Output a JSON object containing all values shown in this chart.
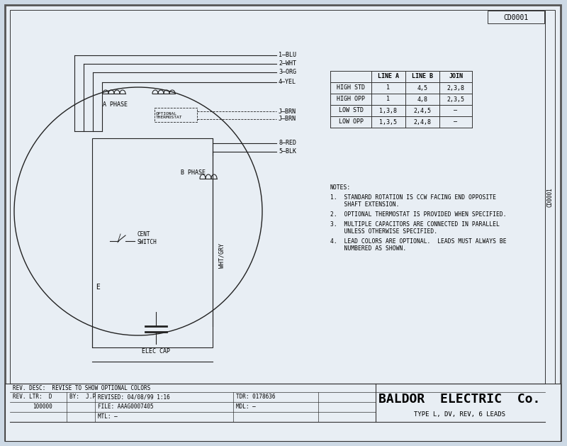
{
  "bg_color": "#cdd9e5",
  "page_bg": "#e8eef4",
  "title": "BALDOR  ELECTRIC  Co.",
  "subtitle": "TYPE L, DV, REV, 6 LEADS",
  "cd_label": "CD0001",
  "table_headers": [
    "",
    "LINE A",
    "LINE B",
    "JOIN"
  ],
  "table_rows": [
    [
      "HIGH STD",
      "1",
      "4,5",
      "2,3,8"
    ],
    [
      "HIGH OPP",
      "1",
      "4,8",
      "2,3,5"
    ],
    [
      "LOW STD",
      "1,3,8",
      "2,4,5",
      "–"
    ],
    [
      "LOW OPP",
      "1,3,5",
      "2,4,8",
      "–"
    ]
  ],
  "notes": [
    "NOTES:",
    "1.  STANDARD ROTATION IS CCW FACING END OPPOSITE\n    SHAFT EXTENSION.",
    "2.  OPTIONAL THERMOSTAT IS PROVIDED WHEN SPECIFIED.",
    "3.  MULTIPLE CAPACITORS ARE CONNECTED IN PARALLEL\n    UNLESS OTHERWISE SPECIFIED.",
    "4.  LEAD COLORS ARE OPTIONAL.  LEADS MUST ALWAYS BE\n    NUMBERED AS SHOWN."
  ],
  "wire_labels": [
    "1–BLU",
    "2–WHT",
    "3–ORG",
    "4–YEL",
    "J–BRN",
    "J–BRN",
    "8–RED",
    "5–BLK"
  ],
  "footer_left1": "REV. DESC:  REVISE TO SHOW OPTIONAL COLORS",
  "footer_revltr": "REV. LTR:  D",
  "footer_by": "BY:  J.P",
  "footer_revised": "REVISED: 04/08/99 1:16",
  "footer_tdr": "TDR: 0178636",
  "footer_num": "100000",
  "footer_file": "FILE: AAAG0007405",
  "footer_mdl": "MDL: –",
  "footer_mtl": "MTL: –",
  "cd_strip": "CD0001"
}
